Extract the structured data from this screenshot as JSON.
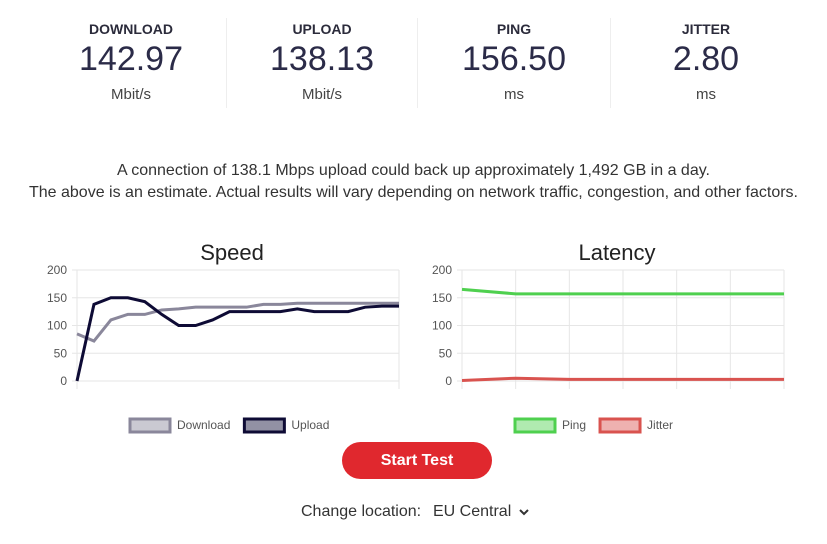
{
  "metrics": [
    {
      "label": "DOWNLOAD",
      "value": "142.97",
      "unit": "Mbit/s"
    },
    {
      "label": "UPLOAD",
      "value": "138.13",
      "unit": "Mbit/s"
    },
    {
      "label": "PING",
      "value": "156.50",
      "unit": "ms"
    },
    {
      "label": "JITTER",
      "value": "2.80",
      "unit": "ms"
    }
  ],
  "info": [
    "A connection of 138.1 Mbps upload could back up approximately 1,492 GB in a day.",
    "The above is an estimate. Actual results will vary depending on network traffic, congestion, and other factors."
  ],
  "chart_data": [
    {
      "type": "line",
      "title": "Speed",
      "categories": [
        null,
        null,
        null,
        null,
        null,
        null,
        null,
        null,
        null,
        null,
        null,
        null,
        null,
        null,
        null,
        null,
        null,
        null,
        null,
        null
      ],
      "series": [
        {
          "name": "Download",
          "color": "#8a879b",
          "values": [
            85,
            72,
            110,
            120,
            120,
            128,
            130,
            133,
            133,
            133,
            133,
            138,
            138,
            140,
            140,
            140,
            140,
            140,
            140,
            140
          ]
        },
        {
          "name": "Upload",
          "color": "#0e0b35",
          "values": [
            0,
            138,
            150,
            150,
            143,
            120,
            100,
            100,
            110,
            125,
            125,
            125,
            125,
            130,
            125,
            125,
            125,
            133,
            135,
            135
          ]
        }
      ],
      "ylim": [
        0,
        200
      ],
      "yticks": [
        0,
        50,
        100,
        150,
        200
      ],
      "grid": true,
      "legend": "bottom"
    },
    {
      "type": "line",
      "title": "Latency",
      "categories": [
        null,
        null,
        null,
        null,
        null,
        null,
        null
      ],
      "series": [
        {
          "name": "Ping",
          "color": "#4fd04f",
          "values": [
            165,
            157,
            157,
            157,
            157,
            157,
            157
          ]
        },
        {
          "name": "Jitter",
          "color": "#d9534f",
          "values": [
            1,
            5,
            3,
            3,
            3,
            3,
            3
          ]
        }
      ],
      "ylim": [
        0,
        200
      ],
      "yticks": [
        0,
        50,
        100,
        150,
        200
      ],
      "grid": true,
      "legend": "bottom"
    }
  ],
  "button": "Start Test",
  "location": {
    "label": "Change location:",
    "value": "EU Central"
  }
}
